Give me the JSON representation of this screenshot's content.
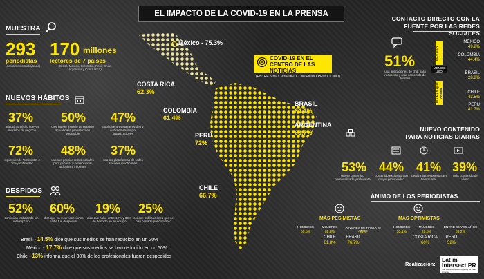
{
  "title": "EL IMPACTO DE LA COVID-19 EN LA PRENSA",
  "muestra": {
    "heading": "MUESTRA",
    "n1": "293",
    "n1_label": "periodistas",
    "n1_note": "(actualmente trabajando)",
    "n2": "170",
    "n2_unit": "millones",
    "n2_label": "lectores de 7 países",
    "n2_note": "(Brasil, México, Colombia, Perú, Chile, Argentina y Costa Rica)"
  },
  "habitos": {
    "heading": "NUEVOS HÁBITOS",
    "items": [
      {
        "v": "37%",
        "t": "adaptó con éxito nuevos modelos de negocio"
      },
      {
        "v": "50%",
        "t": "cree que el modelo de negocio actual de la prensa no es sostenible"
      },
      {
        "v": "47%",
        "t": "publica entrevistas en vídeo y audio enviadas por organizaciones"
      },
      {
        "v": "72%",
        "t": "sigue siendo \"optimista\" o \"muy optimista\""
      },
      {
        "v": "48%",
        "t": "usa sus propias redes sociales para publicar y promocionar artículos e informes"
      },
      {
        "v": "37%",
        "t": "usa las plataformas de redes sociales mucho más"
      }
    ]
  },
  "despidos": {
    "heading": "DESPIDOS",
    "items": [
      {
        "v": "52%",
        "t": "continúan trabajando sin interrupción"
      },
      {
        "v": "60%",
        "t": "dice que en sus redacciones nadie fue despedido"
      },
      {
        "v": "19%",
        "t": "dice que hubo entre 10% y 30% de despido en su equipo"
      },
      {
        "v": "25%",
        "t": "conoce publicaciones que se han cerrado por completo"
      }
    ],
    "lines": [
      {
        "country": "Brasil",
        "value": "14.5%",
        "text": "dice que sus medios se han reducido en un 20%"
      },
      {
        "country": "México",
        "value": "17.7%",
        "text": "dice que sus medios se han reducido en un 50%"
      },
      {
        "country": "Chile",
        "value": "13%",
        "text": "informa que el 30% de los profesionales fueron despedidos"
      }
    ]
  },
  "map": {
    "mexico": "México - 75.3%",
    "costa_rica_name": "COSTA RICA",
    "costa_rica_val": "62.3%",
    "colombia_name": "COLOMBIA",
    "colombia_val": "61.4%",
    "peru_name": "PERÚ",
    "peru_val": "72%",
    "chile_name": "CHILE",
    "chile_val": "66.7%",
    "brasil_name": "BRASIL",
    "brasil_val": "64.1%",
    "argentina_name": "ARGENTINA",
    "argentina_val": "63.7%"
  },
  "center": {
    "line1": "COVID-19 EN EL",
    "line2": "CENTRO DE LAS NOTICIAS",
    "note": "(ENTRE 50% Y 90% DEL CONTENIDO PRODUCIDO)"
  },
  "contacto": {
    "heading1": "CONTACTO DIRECTO CON LA",
    "heading2": "FUENTE POR LAS REDES SOCIALES",
    "v": "51%",
    "t": "usa aplicaciones de chat para recuperar y citar contenido de fuentes",
    "mas_uso": "MÁS USO",
    "menos_uso": "MENOS USO",
    "usa_mas": "USA MÁS QUE ANTES",
    "countries": [
      {
        "name": "MÉXICO",
        "value": "49.2%"
      },
      {
        "name": "COLOMBIA",
        "value": "44.4%"
      },
      {
        "name": "BRASIL",
        "value": "28.8%"
      },
      {
        "name": "CHILE",
        "value": "43.5%"
      },
      {
        "name": "PERÚ",
        "value": "41.7%"
      }
    ]
  },
  "contenido": {
    "heading1": "NUEVO CONTENIDO",
    "heading2": "PARA NOTICIAS DIARIAS",
    "items": [
      {
        "v": "53%",
        "t": "quiere contenido personalizado y relevante"
      },
      {
        "v": "44%",
        "t": "contenido exclusivo con mayor profundidad"
      },
      {
        "v": "41%",
        "t": "idealiza las respuestas en tiempo real"
      },
      {
        "v": "39%",
        "t": "más contenido de vídeo"
      }
    ]
  },
  "animo": {
    "heading": "ÁNIMO DE LOS PERIODISTAS",
    "pesimistas": "MÁS PESIMISTAS",
    "optimistas": "MÁS OPTIMISTAS",
    "p_items": [
      {
        "name": "HOMBRES",
        "value": "60.5%"
      },
      {
        "name": "MUJERES",
        "value": "62.8%"
      },
      {
        "name": "JÓVENES DE HASTA 25 AÑOS",
        "value": "81%"
      },
      {
        "name": "CHILE",
        "value": "81.8%"
      },
      {
        "name": "BRASIL",
        "value": "76.7%"
      }
    ],
    "o_items": [
      {
        "name": "HOMBRES",
        "value": "33.1%"
      },
      {
        "name": "MUJERES",
        "value": "28.5%"
      },
      {
        "name": "ENTRE 46 Y 55 AÑOS",
        "value": "39.2%"
      },
      {
        "name": "COSTA RICA",
        "value": "60%"
      },
      {
        "name": "PERÚ",
        "value": "52%"
      }
    ]
  },
  "footer": {
    "realizacion": "Realización:",
    "logo1": "Lat m",
    "logo2": "Intersect PR",
    "logo_tag": "The Public Relations Agency for Latin America"
  }
}
